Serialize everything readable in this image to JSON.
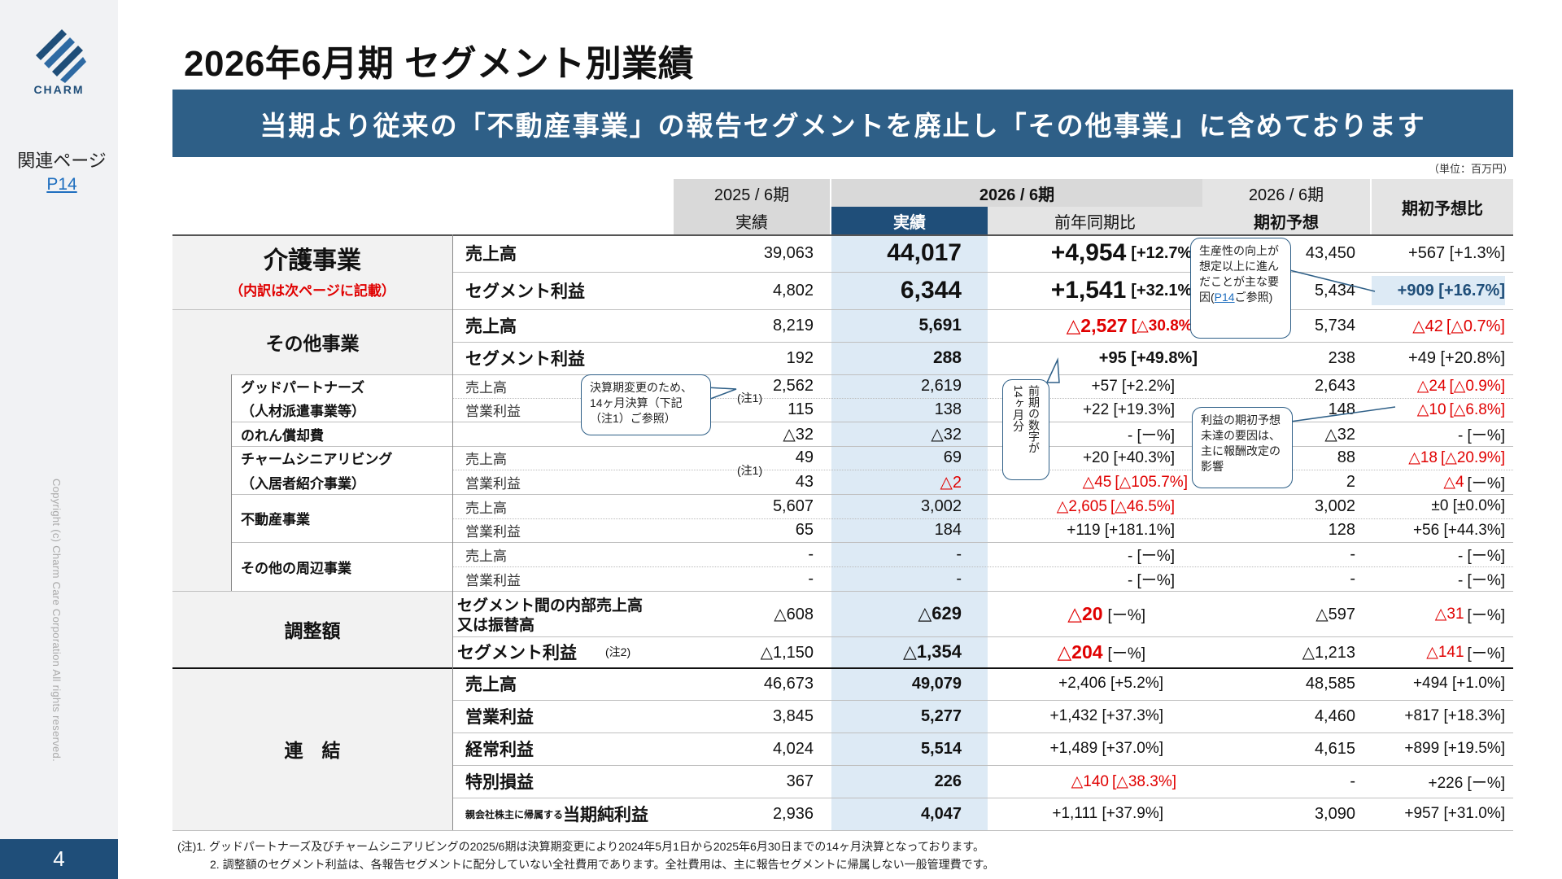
{
  "sidebar": {
    "logo_text": "CHARM",
    "related_label": "関連ページ",
    "related_link": "P14",
    "copyright": "Copyright (c) Charm Care Corporation All rights reserved.",
    "page_number": "4"
  },
  "title": "2026年6月期 セグメント別業績",
  "banner": "当期より従来の「不動産事業」の報告セグメントを廃止し「その他事業」に含めております",
  "unit": "（単位：百万円）",
  "header": {
    "col_2025": "2025 / 6期",
    "col_2025_sub": "実績",
    "col_2026": "2026 / 6期",
    "col_2026_actual": "実績",
    "col_2026_yoy": "前年同期比",
    "col_plan": "2026 / 6期",
    "col_plan_sub": "期初予想",
    "col_plan_ratio": "期初予想比"
  },
  "kaigo": {
    "name": "介護事業",
    "note": "（内訳は次ページに記載）",
    "sales_label": "売上高",
    "profit_label": "セグメント利益",
    "sales": {
      "prev": "39,063",
      "actual": "44,017",
      "yoy_val": "+4,954",
      "yoy_pct": "[+12.7%]",
      "plan": "43,450",
      "plan_diff": "+567 [+1.3%]"
    },
    "profit": {
      "prev": "4,802",
      "actual": "6,344",
      "yoy_val": "+1,541",
      "yoy_pct": "[+32.1%]",
      "plan": "5,434",
      "plan_diff": "+909 [+16.7%]"
    }
  },
  "other": {
    "name": "その他事業",
    "sales_label": "売上高",
    "profit_label": "セグメント利益",
    "sales": {
      "prev": "8,219",
      "actual": "5,691",
      "yoy_val": "△2,527",
      "yoy_pct": "[△30.8%]",
      "plan": "5,734",
      "plan_diff_val": "△42",
      "plan_diff_pct": "[△0.7%]"
    },
    "profit": {
      "prev": "192",
      "actual": "288",
      "yoy": "+95 [+49.8%]",
      "plan": "238",
      "plan_diff": "+49 [+20.8%]"
    }
  },
  "sub": {
    "gp_name1": "グッドパートナーズ",
    "gp_name2": "（人材派遣事業等）",
    "sales_label": "売上高",
    "op_label": "営業利益",
    "note1": "(注1)",
    "gp_sales": {
      "prev": "2,562",
      "actual": "2,619",
      "yoy": "+57 [+2.2%]",
      "plan": "2,643",
      "diff_val": "△24",
      "diff_pct": "[△0.9%]"
    },
    "gp_op": {
      "prev": "115",
      "actual": "138",
      "yoy": "+22 [+19.3%]",
      "plan": "148",
      "diff_val": "△10",
      "diff_pct": "[△6.8%]"
    },
    "goodwill_name": "のれん償却費",
    "goodwill": {
      "prev": "△32",
      "actual": "△32",
      "yoy": "- [ー%]",
      "plan": "△32",
      "diff": "- [ー%]"
    },
    "cs_name1": "チャームシニアリビング",
    "cs_name2": "（入居者紹介事業）",
    "cs_sales": {
      "prev": "49",
      "actual": "69",
      "yoy": "+20 [+40.3%]",
      "plan": "88",
      "diff_val": "△18",
      "diff_pct": "[△20.9%]"
    },
    "cs_op": {
      "prev": "43",
      "actual": "△2",
      "yoy_val": "△45",
      "yoy_pct": "[△105.7%]",
      "plan": "2",
      "diff_val": "△4",
      "diff_pct": "[ー%]"
    },
    "re_name": "不動産事業",
    "re_sales": {
      "prev": "5,607",
      "actual": "3,002",
      "yoy_val": "△2,605",
      "yoy_pct": "[△46.5%]",
      "plan": "3,002",
      "diff": "±0 [±0.0%]"
    },
    "re_op": {
      "prev": "65",
      "actual": "184",
      "yoy": "+119 [+181.1%]",
      "plan": "128",
      "diff": "+56 [+44.3%]"
    },
    "ot_name": "その他の周辺事業",
    "ot_sales": {
      "prev": "-",
      "actual": "-",
      "yoy": "- [ー%]",
      "plan": "-",
      "diff": "- [ー%]"
    },
    "ot_op": {
      "prev": "-",
      "actual": "-",
      "yoy": "- [ー%]",
      "plan": "-",
      "diff": "- [ー%]"
    }
  },
  "adj": {
    "name": "調整額",
    "row1_label1": "セグメント間の内部売上高",
    "row1_label2": "又は振替高",
    "row2_label": "セグメント利益",
    "note2": "(注2)",
    "row1": {
      "prev": "△608",
      "actual": "△629",
      "yoy_val": "△20",
      "yoy_pct": "[ー%]",
      "plan": "△597",
      "diff_val": "△31",
      "diff_pct": "[ー%]"
    },
    "row2": {
      "prev": "△1,150",
      "actual": "△1,354",
      "yoy_val": "△204",
      "yoy_pct": "[ー%]",
      "plan": "△1,213",
      "diff_val": "△141",
      "diff_pct": "[ー%]"
    }
  },
  "consol": {
    "name": "連　結",
    "sales_label": "売上高",
    "op_label": "営業利益",
    "ord_label": "経常利益",
    "sp_label": "特別損益",
    "net_prefix": "親会社株主に帰属する",
    "net_label": "当期純利益",
    "sales": {
      "prev": "46,673",
      "actual": "49,079",
      "yoy": "+2,406 [+5.2%]",
      "plan": "48,585",
      "diff": "+494 [+1.0%]"
    },
    "op": {
      "prev": "3,845",
      "actual": "5,277",
      "yoy": "+1,432 [+37.3%]",
      "plan": "4,460",
      "diff": "+817 [+18.3%]"
    },
    "ord": {
      "prev": "4,024",
      "actual": "5,514",
      "yoy": "+1,489 [+37.0%]",
      "plan": "4,615",
      "diff": "+899 [+19.5%]"
    },
    "sp": {
      "prev": "367",
      "actual": "226",
      "yoy_val": "△140",
      "yoy_pct": "[△38.3%]",
      "plan": "-",
      "diff": "+226 [ー%]"
    },
    "net": {
      "prev": "2,936",
      "actual": "4,047",
      "yoy": "+1,111 [+37.9%]",
      "plan": "3,090",
      "diff": "+957 [+31.0%]"
    }
  },
  "callouts": {
    "fy_change": "決算期変更のため、14ヶ月決算（下記（注1）ご参照）",
    "fourteen": "14ヶ月分",
    "fourteen_b": "前期の数字が",
    "productivity_1": "生産性の向上が想定以上に進んだことが主な要因(",
    "productivity_link": "P14",
    "productivity_2": "ご参照)",
    "reward": "利益の期初予想未達の要因は、主に報酬改定の影響"
  },
  "footnotes": {
    "n1": "(注)1. グッドパートナーズ及びチャームシニアリビングの2025/6期は決算期変更により2024年5月1日から2025年6月30日までの14ヶ月決算となっております。",
    "n2": "2. 調整額のセグメント利益は、各報告セグメントに配分していない全社費用であります。全社費用は、主に報告セグメントに帰属しない一般管理費です。"
  },
  "colors": {
    "navy": "#1f4e79",
    "banner": "#2e5f87",
    "highlight_col": "#ddeaf5",
    "red": "#e00000",
    "link": "#1f6fbf"
  }
}
